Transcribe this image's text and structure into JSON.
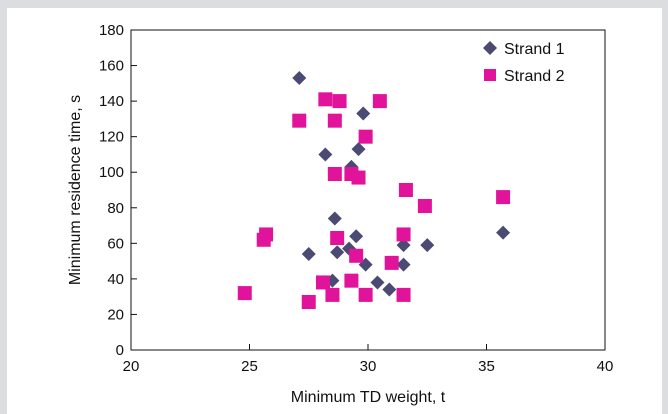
{
  "chart_data": {
    "type": "scatter",
    "title": "",
    "xlabel": "Minimum TD weight, t",
    "ylabel": "Minimum residence time, s",
    "xlim": [
      20,
      40
    ],
    "ylim": [
      0,
      180
    ],
    "xticks": [
      20,
      25,
      30,
      35,
      40
    ],
    "yticks": [
      0,
      20,
      40,
      60,
      80,
      100,
      120,
      140,
      160,
      180
    ],
    "grid": false,
    "legend_position": "top-right",
    "series": [
      {
        "name": "Strand 1",
        "marker": "diamond",
        "color": "#4a4a72",
        "points": [
          [
            27.1,
            153
          ],
          [
            29.8,
            133
          ],
          [
            28.2,
            110
          ],
          [
            29.6,
            113
          ],
          [
            29.3,
            103
          ],
          [
            28.6,
            74
          ],
          [
            29.5,
            64
          ],
          [
            29.2,
            57
          ],
          [
            28.7,
            55
          ],
          [
            27.5,
            54
          ],
          [
            29.9,
            48
          ],
          [
            31.5,
            59
          ],
          [
            32.5,
            59
          ],
          [
            35.7,
            66
          ],
          [
            31.5,
            48
          ],
          [
            28.5,
            39
          ],
          [
            30.4,
            38
          ],
          [
            30.9,
            34
          ]
        ]
      },
      {
        "name": "Strand 2",
        "marker": "square",
        "color": "#e0139a",
        "points": [
          [
            28.2,
            141
          ],
          [
            28.8,
            140
          ],
          [
            30.5,
            140
          ],
          [
            27.1,
            129
          ],
          [
            28.6,
            129
          ],
          [
            29.9,
            120
          ],
          [
            28.6,
            99
          ],
          [
            29.3,
            99
          ],
          [
            29.6,
            97
          ],
          [
            31.6,
            90
          ],
          [
            32.4,
            81
          ],
          [
            35.7,
            86
          ],
          [
            25.7,
            65
          ],
          [
            25.6,
            62
          ],
          [
            28.7,
            63
          ],
          [
            31.5,
            65
          ],
          [
            29.5,
            53
          ],
          [
            31.0,
            49
          ],
          [
            29.3,
            39
          ],
          [
            28.1,
            38
          ],
          [
            24.8,
            32
          ],
          [
            28.5,
            31
          ],
          [
            29.9,
            31
          ],
          [
            31.5,
            31
          ],
          [
            27.5,
            27
          ]
        ]
      }
    ]
  }
}
